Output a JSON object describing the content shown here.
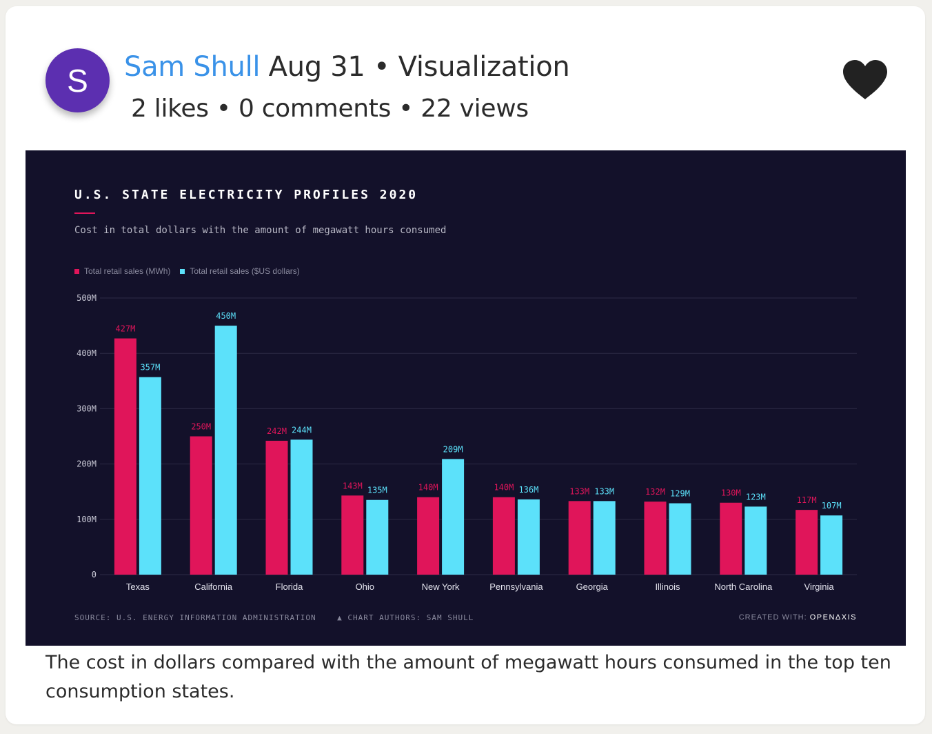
{
  "post": {
    "avatar_letter": "S",
    "author": "Sam Shull",
    "meta": "Aug 31 • Visualization",
    "stats": "2 likes • 0 comments • 22 views",
    "like_icon": "heart-icon",
    "caption": "The cost in dollars compared with the amount of megawatt hours consumed in the top ten consumption states."
  },
  "colors": {
    "avatar": "#5c2fb0",
    "author": "#3a92e8",
    "panel_bg": "#13112a",
    "series_mwh": "#e0155a",
    "series_usd": "#5ce1fa"
  },
  "chart_data": {
    "type": "bar",
    "title": "U.S. STATE ELECTRICITY PROFILES 2020",
    "subtitle": "Cost in total dollars with the amount of megawatt hours consumed",
    "categories": [
      "Texas",
      "California",
      "Florida",
      "Ohio",
      "New York",
      "Pennsylvania",
      "Georgia",
      "Illinois",
      "North Carolina",
      "Virginia"
    ],
    "series": [
      {
        "name": "Total retail sales (MWh)",
        "color": "#e0155a",
        "values": [
          427,
          250,
          242,
          143,
          140,
          140,
          133,
          132,
          130,
          117
        ]
      },
      {
        "name": "Total retail sales ($US dollars)",
        "color": "#5ce1fa",
        "values": [
          357,
          450,
          244,
          135,
          209,
          136,
          133,
          129,
          123,
          107
        ]
      }
    ],
    "value_suffix": "M",
    "ylim": [
      0,
      500
    ],
    "yticks": [
      0,
      100,
      200,
      300,
      400,
      500
    ],
    "ytick_labels": [
      "0",
      "100M",
      "200M",
      "300M",
      "400M",
      "500M"
    ],
    "grid": true,
    "legend_position": "top-left",
    "source": "SOURCE: U.S. ENERGY INFORMATION ADMINISTRATION",
    "authors": "▲ CHART AUTHORS: SAM SHULL",
    "created_with_label": "CREATED WITH:",
    "created_with_brand": "OPENΔXIS"
  }
}
